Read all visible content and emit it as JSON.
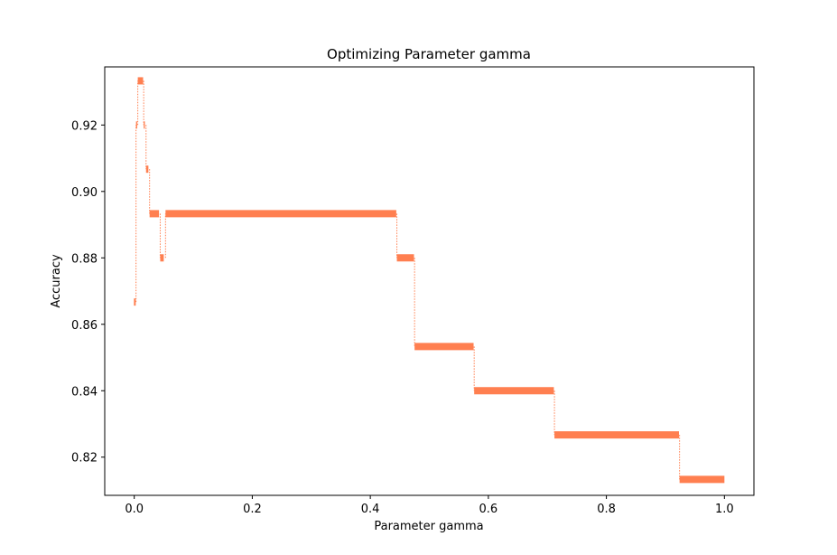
{
  "chart_data": {
    "type": "line",
    "title": "Optimizing Parameter gamma",
    "xlabel": "Parameter gamma",
    "ylabel": "Accuracy",
    "xlim": [
      -0.05,
      1.05
    ],
    "ylim": [
      0.8085,
      0.9375
    ],
    "xticks": [
      0.0,
      0.2,
      0.4,
      0.6,
      0.8,
      1.0
    ],
    "xtick_labels": [
      "0.0",
      "0.2",
      "0.4",
      "0.6",
      "0.8",
      "1.0"
    ],
    "yticks": [
      0.82,
      0.84,
      0.86,
      0.88,
      0.9,
      0.92
    ],
    "ytick_labels": [
      "0.82",
      "0.84",
      "0.86",
      "0.88",
      "0.90",
      "0.92"
    ],
    "grid": false,
    "line_color": "#ff7f50",
    "series": [
      {
        "name": "accuracy",
        "style": "thick segments with dotted vertical connectors",
        "segments": [
          {
            "x_start": 0.001,
            "x_end": 0.001,
            "y": 0.8667
          },
          {
            "x_start": 0.003,
            "x_end": 0.005,
            "y": 0.92
          },
          {
            "x_start": 0.006,
            "x_end": 0.015,
            "y": 0.9333
          },
          {
            "x_start": 0.016,
            "x_end": 0.018,
            "y": 0.92
          },
          {
            "x_start": 0.02,
            "x_end": 0.024,
            "y": 0.9067
          },
          {
            "x_start": 0.026,
            "x_end": 0.042,
            "y": 0.8933
          },
          {
            "x_start": 0.044,
            "x_end": 0.05,
            "y": 0.88
          },
          {
            "x_start": 0.053,
            "x_end": 0.444,
            "y": 0.8933
          },
          {
            "x_start": 0.445,
            "x_end": 0.474,
            "y": 0.88
          },
          {
            "x_start": 0.475,
            "x_end": 0.575,
            "y": 0.8533
          },
          {
            "x_start": 0.576,
            "x_end": 0.711,
            "y": 0.84
          },
          {
            "x_start": 0.712,
            "x_end": 0.923,
            "y": 0.8267
          },
          {
            "x_start": 0.924,
            "x_end": 1.0,
            "y": 0.8133
          }
        ]
      }
    ]
  }
}
